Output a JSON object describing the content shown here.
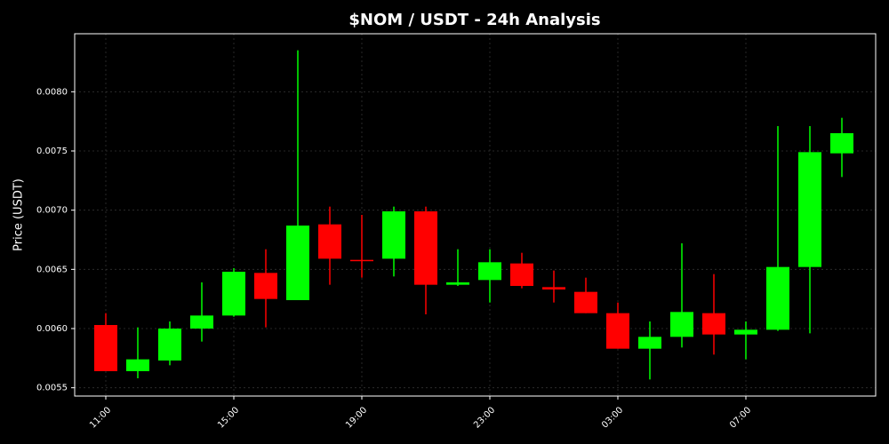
{
  "chart_data": {
    "type": "candlestick",
    "title": "$NOM / USDT - 24h Analysis",
    "y_label": "Price (USDT)",
    "categories": [
      "11:00",
      null,
      null,
      null,
      "15:00",
      null,
      null,
      null,
      "19:00",
      null,
      null,
      null,
      "23:00",
      null,
      null,
      null,
      "03:00",
      null,
      null,
      null,
      "07:00",
      null,
      null,
      null
    ],
    "open": [
      0.00603,
      0.00564,
      0.00573,
      0.006,
      0.00611,
      0.00647,
      0.00624,
      0.00688,
      0.00658,
      0.00659,
      0.00699,
      0.00637,
      0.00641,
      0.00655,
      0.00635,
      0.00631,
      0.00613,
      0.00583,
      0.00593,
      0.00613,
      0.00595,
      0.00599,
      0.00652,
      0.00748
    ],
    "high": [
      0.00613,
      0.00601,
      0.00606,
      0.00639,
      0.00651,
      0.00667,
      0.00835,
      0.00703,
      0.00696,
      0.00703,
      0.00703,
      0.00667,
      0.00667,
      0.00664,
      0.00649,
      0.00643,
      0.00622,
      0.00606,
      0.00672,
      0.00646,
      0.00606,
      0.00771,
      0.00771,
      0.00778
    ],
    "low": [
      0.00564,
      0.00558,
      0.00569,
      0.00589,
      0.0061,
      0.00601,
      0.00624,
      0.00637,
      0.00643,
      0.00644,
      0.00612,
      0.00636,
      0.00622,
      0.00634,
      0.00622,
      0.00613,
      0.00583,
      0.00557,
      0.00584,
      0.00578,
      0.00574,
      0.00598,
      0.00596,
      0.00728
    ],
    "close": [
      0.00564,
      0.00574,
      0.006,
      0.00611,
      0.00648,
      0.00625,
      0.00687,
      0.00659,
      0.00657,
      0.00699,
      0.00637,
      0.00639,
      0.00656,
      0.00636,
      0.00633,
      0.00613,
      0.00583,
      0.00593,
      0.00614,
      0.00595,
      0.00599,
      0.00652,
      0.00749,
      0.00765
    ],
    "up_color": "#00ff00",
    "down_color": "#ff0000",
    "ylim": [
      0.00543,
      0.00849
    ],
    "yticks": [
      0.0055,
      {
        "value": 0.006,
        "label": "0.0060"
      },
      0.0065,
      {
        "value": 0.007,
        "label": "0.0070"
      },
      0.0075,
      {
        "value": 0.008,
        "label": "0.0080"
      }
    ],
    "grid": true
  }
}
